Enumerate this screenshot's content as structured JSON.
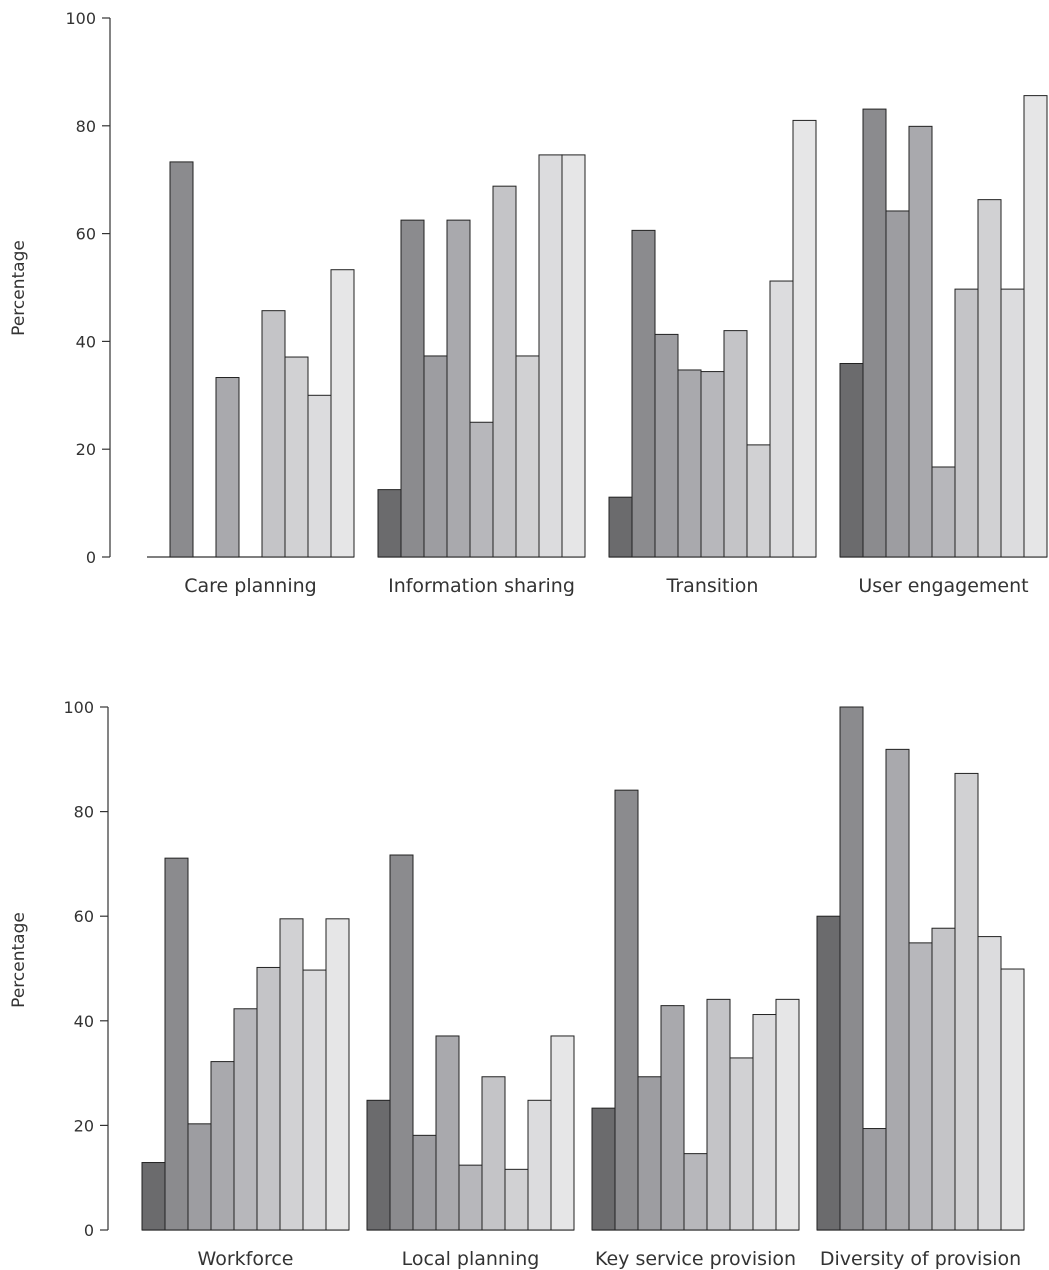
{
  "bar_colors": [
    "#6b6b6d",
    "#8b8b8e",
    "#9d9da1",
    "#a9a9ad",
    "#b7b7bb",
    "#c4c4c7",
    "#d1d1d3",
    "#dcdcde",
    "#e6e6e7"
  ],
  "chart_data": [
    {
      "type": "bar",
      "ylabel": "Percentage",
      "ylim": [
        0,
        100
      ],
      "yticks": [
        0,
        20,
        40,
        60,
        80,
        100
      ],
      "grid": false,
      "categories": [
        "Care planning",
        "Information sharing",
        "Transition",
        "User engagement"
      ],
      "values": [
        [
          0,
          73.3,
          0,
          33.3,
          0,
          45.7,
          37.1,
          30,
          53.3
        ],
        [
          12.5,
          62.5,
          37.3,
          62.5,
          25,
          68.8,
          37.3,
          74.6,
          74.6
        ],
        [
          11.1,
          60.6,
          41.3,
          34.7,
          34.4,
          42,
          20.8,
          51.2,
          81
        ],
        [
          35.9,
          83.1,
          64.2,
          79.9,
          16.7,
          49.7,
          66.3,
          49.7,
          85.6
        ]
      ]
    },
    {
      "type": "bar",
      "ylabel": "Percentage",
      "ylim": [
        0,
        100
      ],
      "yticks": [
        0,
        20,
        40,
        60,
        80,
        100
      ],
      "grid": false,
      "categories": [
        "Workforce",
        "Local planning",
        "Key service provision",
        "Diversity of provision"
      ],
      "values": [
        [
          12.9,
          71.1,
          20.3,
          32.2,
          42.3,
          50.2,
          59.5,
          49.7,
          59.5
        ],
        [
          24.8,
          71.7,
          18.1,
          37.1,
          12.4,
          29.3,
          11.6,
          24.8,
          37.1
        ],
        [
          23.3,
          84.1,
          29.3,
          42.9,
          14.6,
          44.1,
          32.9,
          41.2,
          44.1
        ],
        [
          60,
          100,
          19.4,
          91.9,
          54.9,
          57.7,
          87.3,
          56.1,
          49.9
        ]
      ]
    }
  ]
}
